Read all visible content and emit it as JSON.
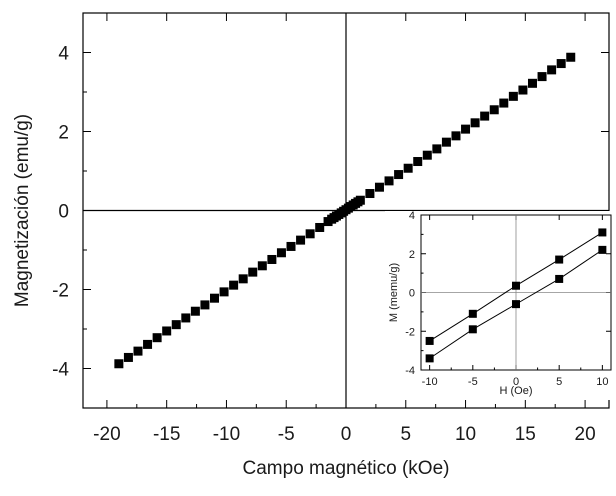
{
  "chart_data": [
    {
      "type": "scatter",
      "title": "",
      "xlabel": "Campo magnético (kOe)",
      "ylabel": "Magnetización (emu/g)",
      "xlim": [
        -22,
        22
      ],
      "ylim": [
        -5,
        5
      ],
      "xticks": [
        "-20",
        "-15",
        "-10",
        "-5",
        "0",
        "5",
        "10",
        "15",
        "20"
      ],
      "yticks": [
        "-4",
        "-2",
        "0",
        "2",
        "4"
      ],
      "grid": false,
      "marker": "square",
      "marker_color": "#000000",
      "zero_lines": true,
      "series": [
        {
          "x": [
            -19,
            -18.2,
            -17.4,
            -16.6,
            -15.8,
            -15,
            -14.2,
            -13.4,
            -12.6,
            -11.8,
            -11,
            -10.2,
            -9.4,
            -8.6,
            -7.8,
            -7,
            -6.2,
            -5.4,
            -4.6,
            -3.8,
            -3,
            -2.2,
            -1.5,
            -1.2,
            -1.0,
            -0.8,
            -0.6,
            -0.4,
            -0.2,
            0,
            0.2,
            0.4,
            0.6,
            0.8,
            1.0,
            1.2,
            2.0,
            2.8,
            3.6,
            4.4,
            5.2,
            6,
            6.8,
            7.6,
            8.4,
            9.2,
            10,
            10.8,
            11.6,
            12.4,
            13.2,
            14,
            14.8,
            15.6,
            16.4,
            17.2,
            18,
            18.8
          ],
          "y": [
            -3.88,
            -3.72,
            -3.56,
            -3.39,
            -3.22,
            -3.05,
            -2.89,
            -2.72,
            -2.55,
            -2.39,
            -2.22,
            -2.06,
            -1.89,
            -1.73,
            -1.56,
            -1.4,
            -1.24,
            -1.07,
            -0.91,
            -0.75,
            -0.59,
            -0.43,
            -0.28,
            -0.22,
            -0.18,
            -0.14,
            -0.1,
            -0.06,
            -0.02,
            0.02,
            0.06,
            0.1,
            0.14,
            0.18,
            0.22,
            0.26,
            0.43,
            0.59,
            0.75,
            0.91,
            1.07,
            1.24,
            1.4,
            1.56,
            1.73,
            1.89,
            2.06,
            2.22,
            2.39,
            2.55,
            2.72,
            2.89,
            3.05,
            3.22,
            3.39,
            3.56,
            3.72,
            3.88
          ]
        }
      ]
    },
    {
      "type": "line",
      "title": "",
      "xlabel": "H (Oe)",
      "ylabel": "M (memu/g)",
      "xlim": [
        -11,
        11
      ],
      "ylim": [
        -4,
        4
      ],
      "xticks": [
        "-10",
        "-5",
        "0",
        "5",
        "10"
      ],
      "yticks": [
        "-4",
        "-2",
        "0",
        "2",
        "4"
      ],
      "grid": false,
      "marker": "square",
      "marker_color": "#000000",
      "zero_lines": true,
      "series": [
        {
          "x": [
            -10,
            -5,
            0,
            5,
            10
          ],
          "y": [
            -2.5,
            -1.1,
            0.35,
            1.7,
            3.1
          ]
        },
        {
          "x": [
            -10,
            -5,
            0,
            5,
            10
          ],
          "y": [
            -3.4,
            -1.9,
            -0.6,
            0.7,
            2.2
          ]
        }
      ]
    }
  ]
}
